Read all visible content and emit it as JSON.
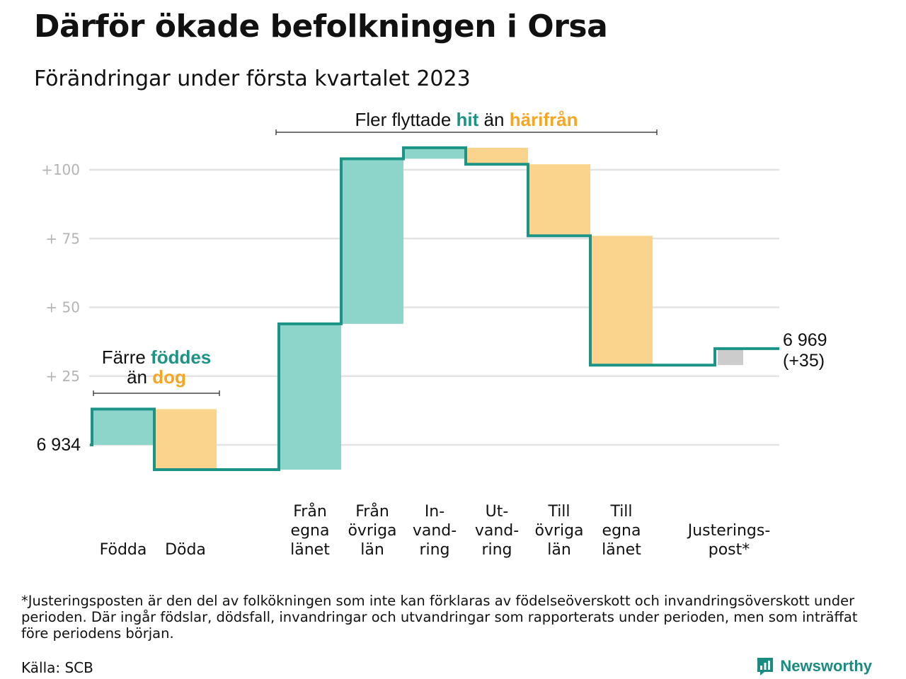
{
  "title": "Därför ökade befolkningen i Orsa",
  "subtitle": "Förändringar under första kvartalet 2023",
  "colors": {
    "increase": "#8dd4cb",
    "decrease": "#fad48c",
    "adjustment": "#cccccc",
    "line": "#1b9486",
    "grid": "#e3e3e3",
    "teal_text": "#1b9486",
    "orange_text": "#f5a623"
  },
  "chart_data": {
    "type": "waterfall",
    "start_label": "6 934",
    "start_value": 6934,
    "end_label": "6 969",
    "end_change_label": "(+35)",
    "y_tick_labels": [
      "+ 25",
      "+ 50",
      "+ 75",
      "+100"
    ],
    "y_ticks": [
      25,
      50,
      75,
      100
    ],
    "ylim": [
      -14,
      110
    ],
    "steps": [
      {
        "category": "Födda",
        "label_lines": [
          "Födda"
        ],
        "change": 13,
        "kind": "increase",
        "group": 0
      },
      {
        "category": "Döda",
        "label_lines": [
          "Döda"
        ],
        "change": -22,
        "kind": "decrease",
        "group": 0
      },
      {
        "category": "Från egna länet",
        "label_lines": [
          "Från",
          "egna",
          "länet"
        ],
        "change": 53,
        "kind": "increase",
        "group": 1
      },
      {
        "category": "Från övriga län",
        "label_lines": [
          "Från",
          "övriga",
          "län"
        ],
        "change": 60,
        "kind": "increase",
        "group": 1
      },
      {
        "category": "Invandring",
        "label_lines": [
          "In-",
          "vand-",
          "ring"
        ],
        "change": 4,
        "kind": "increase",
        "group": 1
      },
      {
        "category": "Utvandring",
        "label_lines": [
          "Ut-",
          "vand-",
          "ring"
        ],
        "change": -6,
        "kind": "decrease",
        "group": 1
      },
      {
        "category": "Till övriga län",
        "label_lines": [
          "Till",
          "övriga",
          "län"
        ],
        "change": -26,
        "kind": "decrease",
        "group": 1
      },
      {
        "category": "Till egna länet",
        "label_lines": [
          "Till",
          "egna",
          "länet"
        ],
        "change": -47,
        "kind": "decrease",
        "group": 1
      },
      {
        "category": "Justeringspost*",
        "label_lines": [
          "Justerings-",
          "post*"
        ],
        "change": 6,
        "kind": "adjustment",
        "group": 2
      }
    ],
    "annotations": {
      "natural": {
        "line1": "Färre ",
        "line1_b": "föddes",
        "line2": "än ",
        "line2_b": "dog"
      },
      "migration": {
        "text1": "Fler flyttade ",
        "text_b1": "hit",
        "text2": " än ",
        "text_b2": "härifrån"
      }
    }
  },
  "footnote": "*Justeringsposten är den del av folkökningen som inte kan förklaras av födelseöverskott och invandringsöverskott under perioden. Där ingår födslar, dödsfall, invandringar och utvandringar som rapporterats under perioden, men som inträffat före periodens början.",
  "source": "Källa: SCB",
  "brand": {
    "name": "Newsworthy",
    "logo_icon": "newsworthy-logo-icon"
  }
}
